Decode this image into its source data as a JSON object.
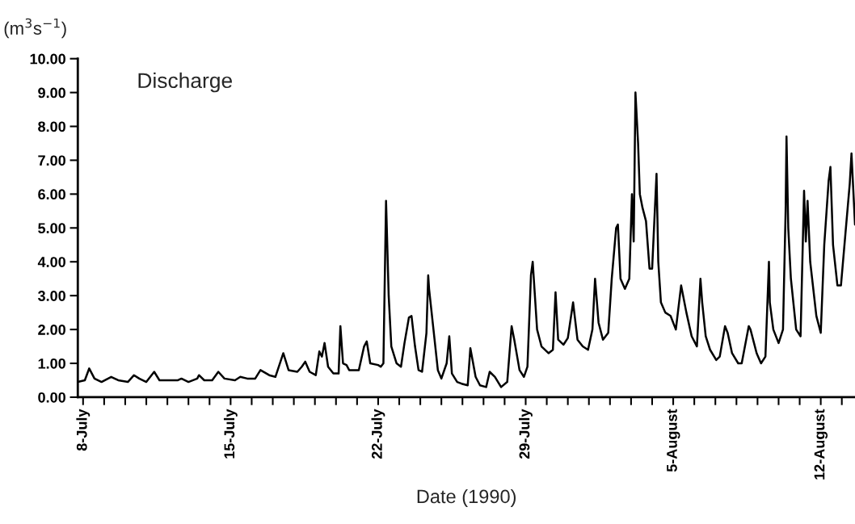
{
  "chart_data": {
    "type": "line",
    "title": "Discharge",
    "xlabel": "Date (1990)",
    "ylabel": "(m$^{3}$s$^{−1}$)",
    "x": [
      "1990-07-07T18:00",
      "1990-07-08T02:00",
      "1990-07-08T07:00",
      "1990-07-08T13:00",
      "1990-07-08T21:00",
      "1990-07-09T08:00",
      "1990-07-09T16:00",
      "1990-07-10T03:00",
      "1990-07-10T10:00",
      "1990-07-10T16:00",
      "1990-07-11T00:00",
      "1990-07-11T09:00",
      "1990-07-11T15:00",
      "1990-07-12T03:00",
      "1990-07-12T12:00",
      "1990-07-12T16:00",
      "1990-07-13T00:00",
      "1990-07-13T10:00",
      "1990-07-13T12:00",
      "1990-07-13T18:00",
      "1990-07-14T03:00",
      "1990-07-14T10:00",
      "1990-07-14T17:00",
      "1990-07-15T05:00",
      "1990-07-15T11:00",
      "1990-07-15T19:00",
      "1990-07-16T04:00",
      "1990-07-16T10:00",
      "1990-07-16T20:00",
      "1990-07-17T03:00",
      "1990-07-17T12:00",
      "1990-07-17T18:00",
      "1990-07-18T04:00",
      "1990-07-18T09:00",
      "1990-07-18T13:00",
      "1990-07-18T18:00",
      "1990-07-19T01:00",
      "1990-07-19T05:00",
      "1990-07-19T08:00",
      "1990-07-19T11:00",
      "1990-07-19T15:00",
      "1990-07-19T21:00",
      "1990-07-20T03:00",
      "1990-07-20T05:00",
      "1990-07-20T08:00",
      "1990-07-20T12:00",
      "1990-07-20T15:00",
      "1990-07-21T02:00",
      "1990-07-21T08:00",
      "1990-07-21T11:00",
      "1990-07-21T15:00",
      "1990-07-22T00:00",
      "1990-07-22T03:00",
      "1990-07-22T06:00",
      "1990-07-22T09:00",
      "1990-07-22T12:00",
      "1990-07-22T15:00",
      "1990-07-22T21:00",
      "1990-07-23T02:00",
      "1990-07-23T06:00",
      "1990-07-23T11:00",
      "1990-07-23T14:00",
      "1990-07-23T18:00",
      "1990-07-23T22:00",
      "1990-07-24T02:00",
      "1990-07-24T07:00",
      "1990-07-24T09:00",
      "1990-07-24T10:00",
      "1990-07-24T15:00",
      "1990-07-24T20:00",
      "1990-07-25T00:00",
      "1990-07-25T06:00",
      "1990-07-25T09:00",
      "1990-07-25T12:00",
      "1990-07-25T18:00",
      "1990-07-25T23:00",
      "1990-07-26T06:00",
      "1990-07-26T09:00",
      "1990-07-26T15:00",
      "1990-07-26T20:00",
      "1990-07-27T03:00",
      "1990-07-27T07:00",
      "1990-07-27T13:00",
      "1990-07-27T20:00",
      "1990-07-28T03:00",
      "1990-07-28T08:00",
      "1990-07-28T11:00",
      "1990-07-28T17:00",
      "1990-07-28T22:00",
      "1990-07-29T02:00",
      "1990-07-29T06:00",
      "1990-07-29T08:00",
      "1990-07-29T13:00",
      "1990-07-29T18:00",
      "1990-07-30T02:00",
      "1990-07-30T07:00",
      "1990-07-30T10:00",
      "1990-07-30T13:00",
      "1990-07-30T19:00",
      "1990-07-31T00:00",
      "1990-07-31T06:00",
      "1990-07-31T11:00",
      "1990-07-31T17:00",
      "1990-07-31T23:00",
      "1990-08-01T04:00",
      "1990-08-01T07:00",
      "1990-08-01T11:00",
      "1990-08-01T16:00",
      "1990-08-01T22:00",
      "1990-08-02T02:00",
      "1990-08-02T07:00",
      "1990-08-02T09:00",
      "1990-08-02T12:00",
      "1990-08-02T17:00",
      "1990-08-02T22:00",
      "1990-08-03T01:00",
      "1990-08-03T03:00",
      "1990-08-03T05:00",
      "1990-08-03T08:00",
      "1990-08-03T10:00",
      "1990-08-03T13:00",
      "1990-08-03T17:00",
      "1990-08-03T21:00",
      "1990-08-04T00:00",
      "1990-08-04T05:00",
      "1990-08-04T07:00",
      "1990-08-04T10:00",
      "1990-08-04T15:00",
      "1990-08-04T21:00",
      "1990-08-05T03:00",
      "1990-08-05T09:00",
      "1990-08-05T15:00",
      "1990-08-05T21:00",
      "1990-08-06T03:00",
      "1990-08-06T07:00",
      "1990-08-06T09:00",
      "1990-08-06T13:00",
      "1990-08-06T18:00",
      "1990-08-07T01:00",
      "1990-08-07T05:00",
      "1990-08-07T11:00",
      "1990-08-07T14:00",
      "1990-08-07T19:00",
      "1990-08-08T02:00",
      "1990-08-08T06:00",
      "1990-08-08T14:00",
      "1990-08-08T16:00",
      "1990-08-08T23:00",
      "1990-08-09T04:00",
      "1990-08-09T09:00",
      "1990-08-09T13:00",
      "1990-08-09T14:00",
      "1990-08-09T18:00",
      "1990-08-10T00:00",
      "1990-08-10T05:00",
      "1990-08-10T08:00",
      "1990-08-10T09:00",
      "1990-08-10T11:00",
      "1990-08-10T14:00",
      "1990-08-10T20:00",
      "1990-08-11T01:00",
      "1990-08-11T05:00",
      "1990-08-11T07:00",
      "1990-08-11T09:00",
      "1990-08-11T12:00",
      "1990-08-11T19:00",
      "1990-08-12T00:00",
      "1990-08-12T04:00",
      "1990-08-12T09:00",
      "1990-08-12T11:00",
      "1990-08-12T14:00",
      "1990-08-12T19:00",
      "1990-08-12T23:00",
      "1990-08-13T04:00",
      "1990-08-13T09:00",
      "1990-08-13T11:00",
      "1990-08-13T15:00"
    ],
    "series": [
      {
        "color": "#000000",
        "values": [
          0.45,
          0.5,
          0.85,
          0.55,
          0.45,
          0.6,
          0.5,
          0.45,
          0.65,
          0.55,
          0.45,
          0.75,
          0.5,
          0.5,
          0.5,
          0.55,
          0.45,
          0.55,
          0.65,
          0.5,
          0.5,
          0.75,
          0.55,
          0.5,
          0.6,
          0.55,
          0.55,
          0.8,
          0.65,
          0.6,
          1.3,
          0.8,
          0.75,
          0.9,
          1.05,
          0.75,
          0.65,
          1.35,
          1.2,
          1.6,
          0.9,
          0.7,
          0.7,
          2.1,
          1.0,
          0.95,
          0.8,
          0.8,
          1.5,
          1.65,
          1.0,
          0.95,
          0.9,
          1.0,
          5.8,
          3.0,
          1.5,
          1.0,
          0.9,
          1.6,
          2.35,
          2.4,
          1.5,
          0.8,
          0.75,
          1.9,
          3.6,
          3.2,
          2.0,
          0.8,
          0.55,
          1.0,
          1.8,
          0.7,
          0.45,
          0.4,
          0.35,
          1.45,
          0.6,
          0.35,
          0.3,
          0.75,
          0.6,
          0.3,
          0.45,
          2.1,
          1.7,
          0.8,
          0.6,
          0.9,
          3.6,
          4.0,
          2.0,
          1.5,
          1.3,
          1.4,
          3.1,
          1.7,
          1.55,
          1.75,
          2.8,
          1.7,
          1.5,
          1.4,
          2.0,
          3.5,
          2.2,
          1.7,
          1.9,
          3.5,
          5.0,
          5.1,
          3.5,
          3.2,
          3.5,
          6.0,
          4.6,
          9.0,
          7.5,
          6.0,
          5.6,
          5.2,
          3.8,
          3.8,
          6.6,
          4.0,
          2.8,
          2.5,
          2.4,
          2.0,
          3.3,
          2.5,
          1.8,
          1.5,
          3.5,
          2.8,
          1.8,
          1.4,
          1.1,
          1.2,
          2.1,
          1.9,
          1.3,
          1.0,
          1.0,
          2.1,
          2.0,
          1.3,
          1.0,
          1.2,
          4.0,
          2.8,
          2.0,
          1.6,
          2.0,
          5.5,
          7.7,
          5.0,
          3.5,
          2.0,
          1.8,
          6.1,
          4.6,
          5.8,
          4.0,
          2.4,
          1.9,
          4.5,
          6.4,
          6.8,
          4.5,
          3.3,
          3.3,
          4.8,
          6.3,
          7.2,
          5.1
        ]
      }
    ],
    "xlim": [
      "1990-07-07T18:00",
      "1990-08-13T15:00"
    ],
    "xticks": [
      {
        "value": "1990-07-08",
        "label": "8-July"
      },
      {
        "value": "1990-07-09",
        "label": null
      },
      {
        "value": "1990-07-10",
        "label": null
      },
      {
        "value": "1990-07-11",
        "label": null
      },
      {
        "value": "1990-07-12",
        "label": null
      },
      {
        "value": "1990-07-13",
        "label": null
      },
      {
        "value": "1990-07-14",
        "label": null
      },
      {
        "value": "1990-07-15",
        "label": "15-July"
      },
      {
        "value": "1990-07-16",
        "label": null
      },
      {
        "value": "1990-07-17",
        "label": null
      },
      {
        "value": "1990-07-18",
        "label": null
      },
      {
        "value": "1990-07-19",
        "label": null
      },
      {
        "value": "1990-07-20",
        "label": null
      },
      {
        "value": "1990-07-21",
        "label": null
      },
      {
        "value": "1990-07-22",
        "label": "22-July"
      },
      {
        "value": "1990-07-23",
        "label": null
      },
      {
        "value": "1990-07-24",
        "label": null
      },
      {
        "value": "1990-07-25",
        "label": null
      },
      {
        "value": "1990-07-26",
        "label": null
      },
      {
        "value": "1990-07-27",
        "label": null
      },
      {
        "value": "1990-07-28",
        "label": null
      },
      {
        "value": "1990-07-29",
        "label": "29-July"
      },
      {
        "value": "1990-07-30",
        "label": null
      },
      {
        "value": "1990-07-31",
        "label": null
      },
      {
        "value": "1990-08-01",
        "label": null
      },
      {
        "value": "1990-08-02",
        "label": null
      },
      {
        "value": "1990-08-03",
        "label": null
      },
      {
        "value": "1990-08-04",
        "label": null
      },
      {
        "value": "1990-08-05",
        "label": "5-August"
      },
      {
        "value": "1990-08-06",
        "label": null
      },
      {
        "value": "1990-08-07",
        "label": null
      },
      {
        "value": "1990-08-08",
        "label": null
      },
      {
        "value": "1990-08-09",
        "label": null
      },
      {
        "value": "1990-08-10",
        "label": null
      },
      {
        "value": "1990-08-11",
        "label": null
      },
      {
        "value": "1990-08-12",
        "label": "12-August"
      },
      {
        "value": "1990-08-13",
        "label": null
      }
    ],
    "ylim": [
      0,
      10
    ],
    "yticks": [
      {
        "value": 0,
        "label": "0.00"
      },
      {
        "value": 1,
        "label": "1.00"
      },
      {
        "value": 2,
        "label": "2.00"
      },
      {
        "value": 3,
        "label": "3.00"
      },
      {
        "value": 4,
        "label": "4.00"
      },
      {
        "value": 5,
        "label": "5.00"
      },
      {
        "value": 6,
        "label": "6.00"
      },
      {
        "value": 7,
        "label": "7.00"
      },
      {
        "value": 8,
        "label": "8.00"
      },
      {
        "value": 9,
        "label": "9.00"
      },
      {
        "value": 10,
        "label": "10.00"
      }
    ],
    "line_style": "solid"
  }
}
